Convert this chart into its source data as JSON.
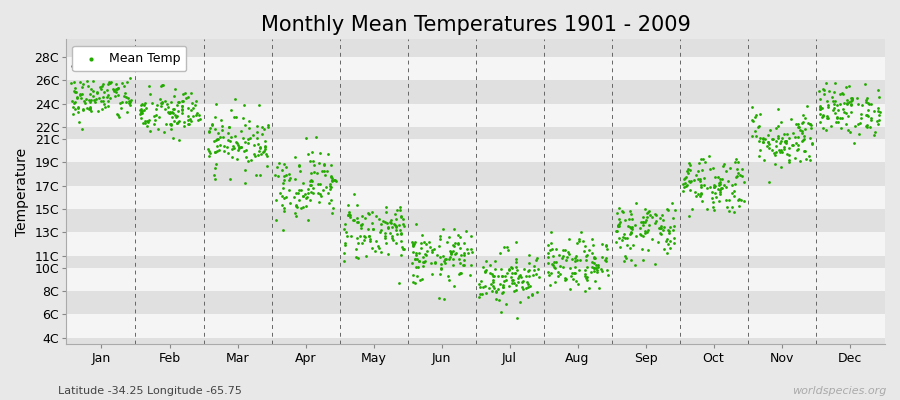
{
  "title": "Monthly Mean Temperatures 1901 - 2009",
  "ylabel": "Temperature",
  "subtitle": "Latitude -34.25 Longitude -65.75",
  "watermark": "worldspecies.org",
  "dot_color": "#22aa00",
  "background_color": "#e8e8e8",
  "stripe_color_light": "#f5f5f5",
  "stripe_color_dark": "#e0e0e0",
  "ytick_labels": [
    "4C",
    "6C",
    "8C",
    "10C",
    "11C",
    "13C",
    "15C",
    "17C",
    "19C",
    "21C",
    "22C",
    "24C",
    "26C",
    "28C"
  ],
  "ytick_values": [
    4,
    6,
    8,
    10,
    11,
    13,
    15,
    17,
    19,
    21,
    22,
    24,
    26,
    28
  ],
  "ylim": [
    3.5,
    29.5
  ],
  "months": [
    "Jan",
    "Feb",
    "Mar",
    "Apr",
    "May",
    "Jun",
    "Jul",
    "Aug",
    "Sep",
    "Oct",
    "Nov",
    "Dec"
  ],
  "month_means": [
    24.5,
    23.2,
    20.8,
    17.2,
    13.2,
    10.8,
    9.2,
    10.2,
    13.2,
    17.2,
    21.0,
    23.5
  ],
  "month_std": [
    1.0,
    1.1,
    1.3,
    1.5,
    1.3,
    1.2,
    1.2,
    1.1,
    1.3,
    1.3,
    1.3,
    1.1
  ],
  "n_years": 109,
  "legend_label": "Mean Temp",
  "dot_size": 4,
  "title_fontsize": 15,
  "axis_fontsize": 10,
  "tick_fontsize": 9,
  "legend_fontsize": 9
}
